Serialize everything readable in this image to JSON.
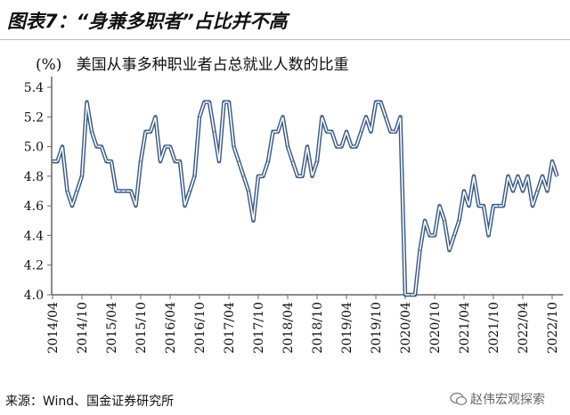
{
  "title": "图表7：“身兼多职者”占比并不高",
  "source": "来源：Wind、国金证券研究所",
  "watermark": "赵伟宏观探索",
  "colors": {
    "line": "#3a5a85"
  },
  "chart_data": {
    "type": "line",
    "title": "美国从事多种职业者占总就业人数的比重",
    "ylabel": "(%)",
    "xlabel": "",
    "ylim": [
      4.0,
      5.4
    ],
    "yticks": [
      "4.0",
      "4.2",
      "4.4",
      "4.6",
      "4.8",
      "5.0",
      "5.2",
      "5.4"
    ],
    "x_start": "2014/04",
    "x_frequency": "monthly",
    "xtick_labels": [
      "2014/04",
      "2014/10",
      "2015/04",
      "2015/10",
      "2016/04",
      "2016/10",
      "2017/04",
      "2017/10",
      "2018/04",
      "2018/10",
      "2019/04",
      "2019/10",
      "2020/04",
      "2020/10",
      "2021/04",
      "2021/10",
      "2022/04",
      "2022/10"
    ],
    "grid": false,
    "series": [
      {
        "name": "美国从事多种职业者占总就业人数的比重",
        "values": [
          4.9,
          4.9,
          5.0,
          4.7,
          4.6,
          4.7,
          4.8,
          5.3,
          5.1,
          5.0,
          5.0,
          4.9,
          4.9,
          4.7,
          4.7,
          4.7,
          4.7,
          4.6,
          4.9,
          5.1,
          5.1,
          5.2,
          4.9,
          5.0,
          5.0,
          4.9,
          4.9,
          4.6,
          4.7,
          4.8,
          5.2,
          5.3,
          5.3,
          5.1,
          4.9,
          5.3,
          5.3,
          5.0,
          4.9,
          4.8,
          4.7,
          4.5,
          4.8,
          4.8,
          4.9,
          5.1,
          5.1,
          5.2,
          5.0,
          4.9,
          4.8,
          4.8,
          5.0,
          4.8,
          4.9,
          5.2,
          5.1,
          5.1,
          5.0,
          5.0,
          5.1,
          5.0,
          5.0,
          5.1,
          5.2,
          5.1,
          5.3,
          5.3,
          5.2,
          5.1,
          5.1,
          5.2,
          4.0,
          4.0,
          4.0,
          4.3,
          4.5,
          4.4,
          4.4,
          4.6,
          4.5,
          4.3,
          4.4,
          4.5,
          4.7,
          4.6,
          4.8,
          4.6,
          4.6,
          4.4,
          4.6,
          4.6,
          4.6,
          4.8,
          4.7,
          4.8,
          4.7,
          4.8,
          4.6,
          4.7,
          4.8,
          4.7,
          4.9,
          4.8
        ]
      }
    ]
  }
}
